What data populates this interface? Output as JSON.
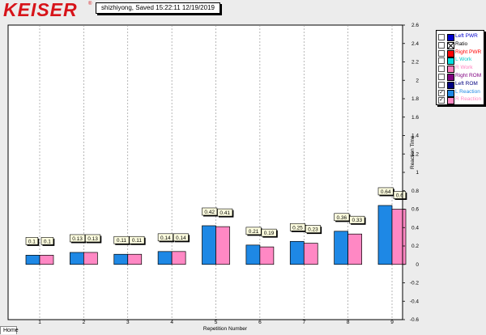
{
  "brand": {
    "name": "KEISER",
    "reg_mark": "®"
  },
  "session": {
    "label": "shizhiyong, Saved  15:22:11 12/19/2019"
  },
  "home_tab": "Home",
  "legend": {
    "items": [
      {
        "label": "Left PWR",
        "color": "#0000cc",
        "text_color": "#0000cc",
        "checked": false
      },
      {
        "label": "Ratio",
        "color": "ratio-x-icon",
        "text_color": "#000000",
        "checked": false
      },
      {
        "label": "Right PWR",
        "color": "#ff0000",
        "text_color": "#ff0000",
        "checked": false
      },
      {
        "label": "L Work",
        "color": "#00e0e0",
        "text_color": "#00c8c8",
        "checked": false
      },
      {
        "label": "R Work",
        "color": "#ff80c0",
        "text_color": "#ff80c0",
        "checked": false
      },
      {
        "label": "Right ROM",
        "color": "#800080",
        "text_color": "#800080",
        "checked": false
      },
      {
        "label": "Left ROM",
        "color": "#000080",
        "text_color": "#000080",
        "checked": false
      },
      {
        "label": "L Reaction",
        "color": "#1e88e5",
        "text_color": "#1e88e5",
        "checked": true
      },
      {
        "label": "R Reaction",
        "color": "#ff88c4",
        "text_color": "#ff88c4",
        "checked": true
      }
    ]
  },
  "chart_data": {
    "type": "bar",
    "xlabel": "Repetition Number",
    "ylabel": "Reaction Time",
    "categories": [
      "1",
      "2",
      "3",
      "4",
      "5",
      "6",
      "7",
      "8",
      "9"
    ],
    "ylim": [
      -0.6,
      2.6
    ],
    "yticks": [
      "-0.6",
      "-0.4",
      "-0.2",
      "0",
      "0.2",
      "0.4",
      "0.6",
      "0.8",
      "1",
      "1.2",
      "1.4",
      "1.6",
      "1.8",
      "2",
      "2.2",
      "2.4",
      "2.6"
    ],
    "grid": "vertical-dashed",
    "legend_position": "right",
    "series": [
      {
        "name": "L Reaction",
        "color": "#1e88e5",
        "values": [
          0.1,
          0.13,
          0.11,
          0.14,
          0.42,
          0.21,
          0.25,
          0.36,
          0.64
        ],
        "labels": [
          "0.1",
          "0.13",
          "0.11",
          "0.14",
          "0.42",
          "0.21",
          "0.25",
          "0.36",
          "0.64"
        ]
      },
      {
        "name": "R Reaction",
        "color": "#ff88c4",
        "values": [
          0.1,
          0.13,
          0.11,
          0.14,
          0.41,
          0.19,
          0.23,
          0.33,
          0.6
        ],
        "labels": [
          "0.1",
          "0.13",
          "0.11",
          "0.14",
          "0.41",
          "0.19",
          "0.23",
          "0.33",
          "0.6"
        ]
      }
    ]
  }
}
